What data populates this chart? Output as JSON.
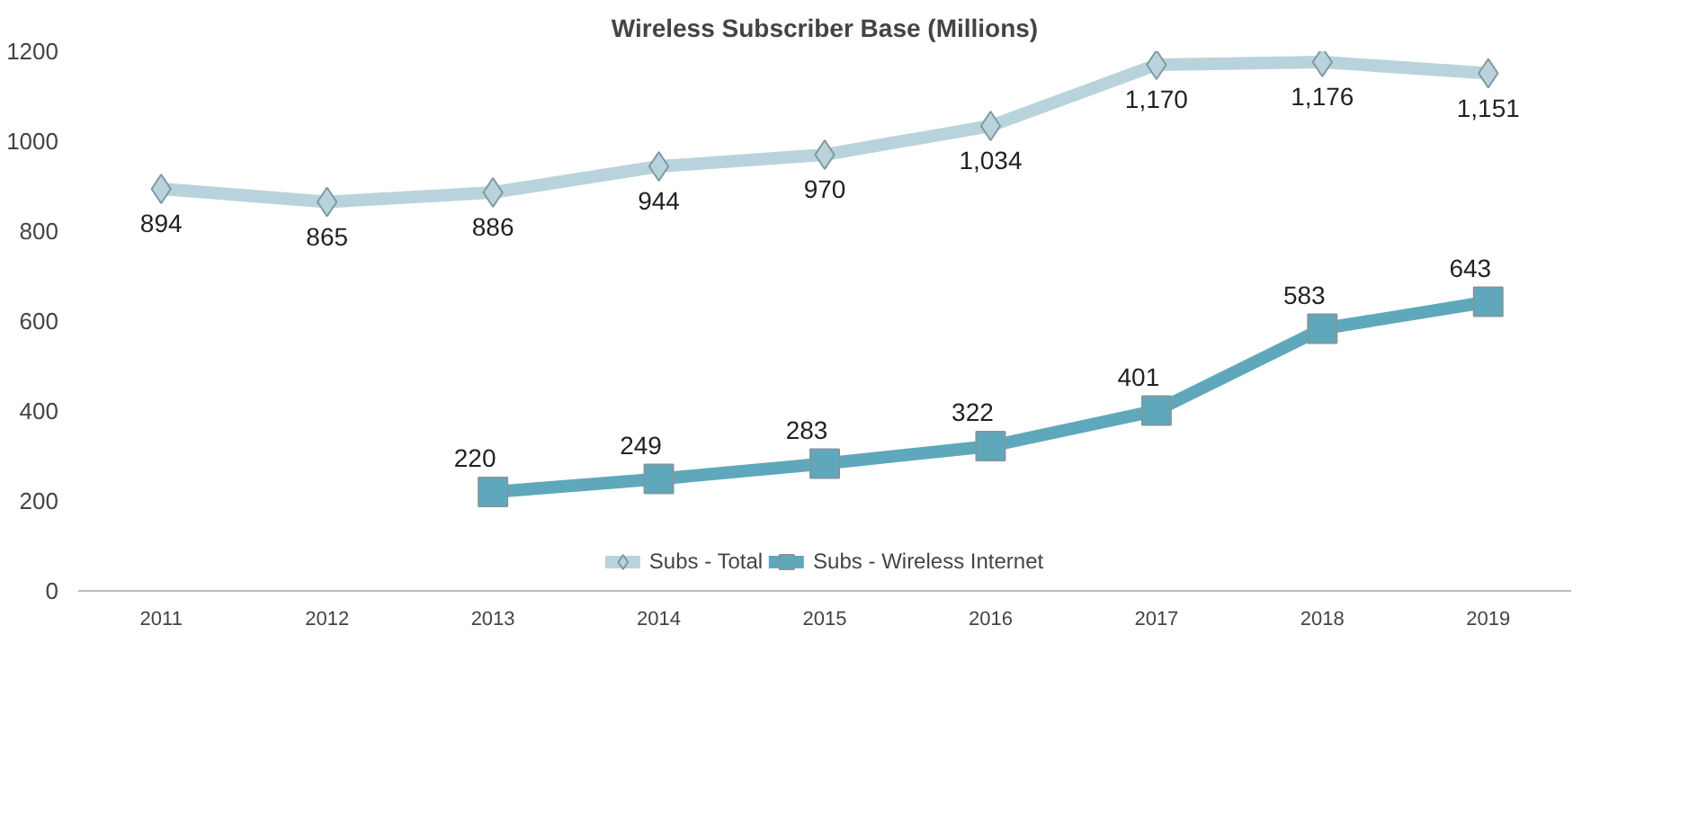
{
  "chart_data": {
    "type": "line",
    "title": "Wireless Subscriber Base (Millions)",
    "categories": [
      "2011",
      "2012",
      "2013",
      "2014",
      "2015",
      "2016",
      "2017",
      "2018",
      "2019"
    ],
    "series": [
      {
        "name": "Subs - Total",
        "color": "#b9d3dc",
        "marker": "diamond",
        "values": [
          894,
          865,
          886,
          944,
          970,
          1034,
          1170,
          1176,
          1151
        ],
        "value_labels": [
          "894",
          "865",
          "886",
          "944",
          "970",
          "1,034",
          "1,170",
          "1,176",
          "1,151"
        ]
      },
      {
        "name": "Subs - Wireless Internet",
        "color": "#5fa8bc",
        "marker": "square",
        "values": [
          null,
          null,
          220,
          249,
          283,
          322,
          401,
          583,
          643
        ],
        "value_labels": [
          null,
          null,
          "220",
          "249",
          "283",
          "322",
          "401",
          "583",
          "643"
        ]
      }
    ],
    "ylim": [
      0,
      1200
    ],
    "yticks": [
      0,
      200,
      400,
      600,
      800,
      1000,
      1200
    ],
    "grid": false,
    "legend": "bottom",
    "line_style": "solid"
  }
}
